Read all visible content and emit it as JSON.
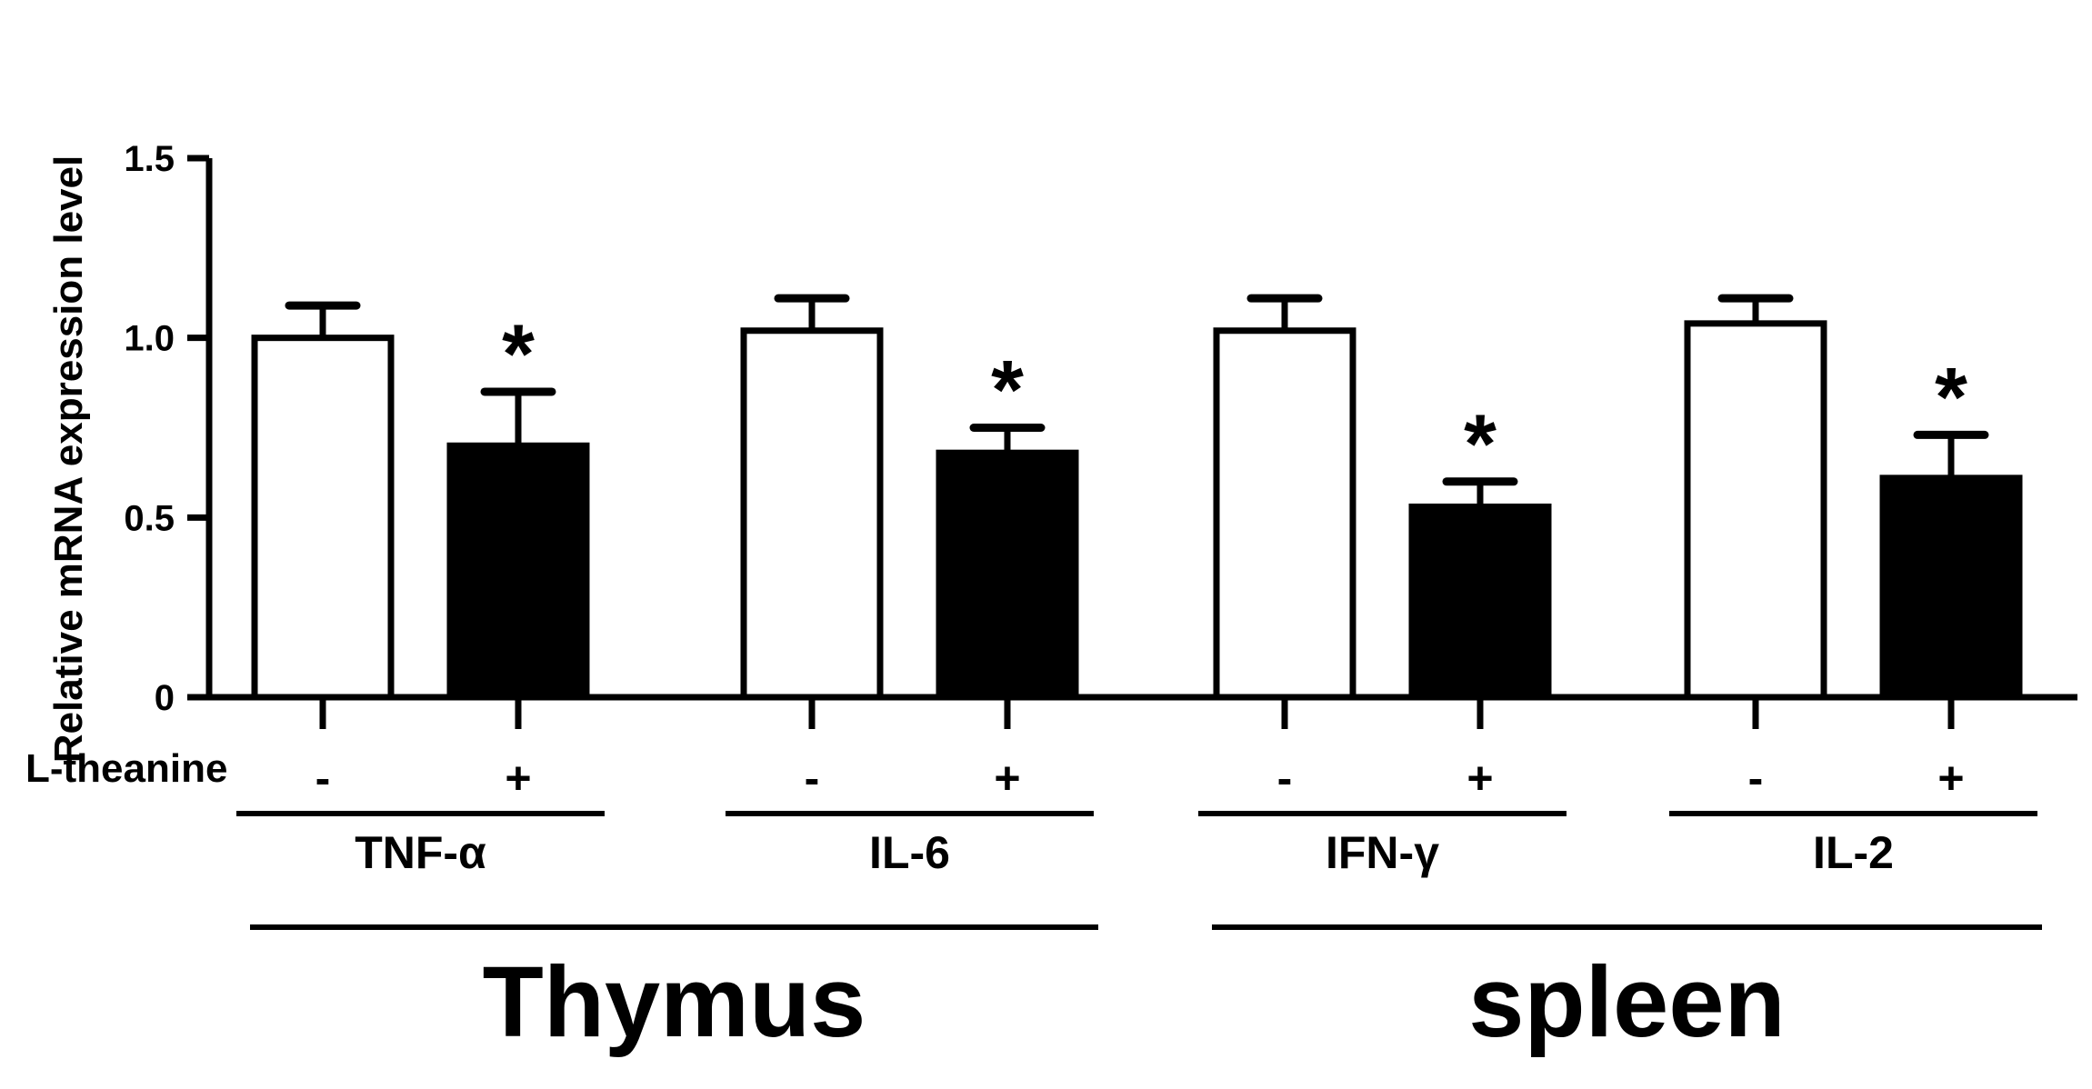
{
  "chart_data": {
    "type": "bar",
    "ylabel": "Relative mRNA expression level",
    "ylim": [
      0,
      1.5
    ],
    "yticks": [
      {
        "value": 0,
        "label": "0"
      },
      {
        "value": 0.5,
        "label": "0.5"
      },
      {
        "value": 1.0,
        "label": "1.0"
      },
      {
        "value": 1.5,
        "label": "1.5"
      }
    ],
    "treatment_label": "L-theanine",
    "signs": {
      "minus": "-",
      "plus": "+"
    },
    "significance_marker": "*",
    "colors": {
      "control": "#ffffff",
      "treated": "#000000",
      "stroke": "#000000"
    },
    "groups": [
      {
        "gene": "TNF-α",
        "organ": "Thymus",
        "control": {
          "value": 1.0,
          "error": 0.09
        },
        "treated": {
          "value": 0.7,
          "error": 0.15,
          "significant": true
        }
      },
      {
        "gene": "IL-6",
        "organ": "Thymus",
        "control": {
          "value": 1.02,
          "error": 0.09
        },
        "treated": {
          "value": 0.68,
          "error": 0.07,
          "significant": true
        }
      },
      {
        "gene": "IFN-γ",
        "organ": "spleen",
        "control": {
          "value": 1.02,
          "error": 0.09
        },
        "treated": {
          "value": 0.53,
          "error": 0.07,
          "significant": true
        }
      },
      {
        "gene": "IL-2",
        "organ": "spleen",
        "control": {
          "value": 1.04,
          "error": 0.07
        },
        "treated": {
          "value": 0.61,
          "error": 0.12,
          "significant": true
        }
      }
    ],
    "organs": [
      "Thymus",
      "spleen"
    ]
  }
}
